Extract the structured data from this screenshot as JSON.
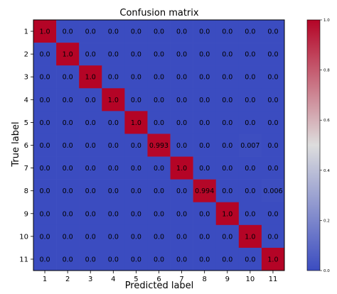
{
  "chart_data": {
    "type": "heatmap",
    "title": "Confusion matrix",
    "xlabel": "Predicted label",
    "ylabel": "True label",
    "x_tick_labels": [
      "1",
      "2",
      "3",
      "4",
      "5",
      "6",
      "7",
      "8",
      "9",
      "10",
      "11"
    ],
    "y_tick_labels": [
      "1",
      "2",
      "3",
      "4",
      "5",
      "6",
      "7",
      "8",
      "9",
      "10",
      "11"
    ],
    "values": [
      [
        1.0,
        0.0,
        0.0,
        0.0,
        0.0,
        0.0,
        0.0,
        0.0,
        0.0,
        0.0,
        0.0
      ],
      [
        0.0,
        1.0,
        0.0,
        0.0,
        0.0,
        0.0,
        0.0,
        0.0,
        0.0,
        0.0,
        0.0
      ],
      [
        0.0,
        0.0,
        1.0,
        0.0,
        0.0,
        0.0,
        0.0,
        0.0,
        0.0,
        0.0,
        0.0
      ],
      [
        0.0,
        0.0,
        0.0,
        1.0,
        0.0,
        0.0,
        0.0,
        0.0,
        0.0,
        0.0,
        0.0
      ],
      [
        0.0,
        0.0,
        0.0,
        0.0,
        1.0,
        0.0,
        0.0,
        0.0,
        0.0,
        0.0,
        0.0
      ],
      [
        0.0,
        0.0,
        0.0,
        0.0,
        0.0,
        0.993,
        0.0,
        0.0,
        0.0,
        0.007,
        0.0
      ],
      [
        0.0,
        0.0,
        0.0,
        0.0,
        0.0,
        0.0,
        1.0,
        0.0,
        0.0,
        0.0,
        0.0
      ],
      [
        0.0,
        0.0,
        0.0,
        0.0,
        0.0,
        0.0,
        0.0,
        0.994,
        0.0,
        0.0,
        0.006
      ],
      [
        0.0,
        0.0,
        0.0,
        0.0,
        0.0,
        0.0,
        0.0,
        0.0,
        1.0,
        0.0,
        0.0
      ],
      [
        0.0,
        0.0,
        0.0,
        0.0,
        0.0,
        0.0,
        0.0,
        0.0,
        0.0,
        1.0,
        0.0
      ],
      [
        0.0,
        0.0,
        0.0,
        0.0,
        0.0,
        0.0,
        0.0,
        0.0,
        0.0,
        0.0,
        1.0
      ]
    ],
    "cell_labels": [
      [
        "1.0",
        "0.0",
        "0.0",
        "0.0",
        "0.0",
        "0.0",
        "0.0",
        "0.0",
        "0.0",
        "0.0",
        "0.0"
      ],
      [
        "0.0",
        "1.0",
        "0.0",
        "0.0",
        "0.0",
        "0.0",
        "0.0",
        "0.0",
        "0.0",
        "0.0",
        "0.0"
      ],
      [
        "0.0",
        "0.0",
        "1.0",
        "0.0",
        "0.0",
        "0.0",
        "0.0",
        "0.0",
        "0.0",
        "0.0",
        "0.0"
      ],
      [
        "0.0",
        "0.0",
        "0.0",
        "1.0",
        "0.0",
        "0.0",
        "0.0",
        "0.0",
        "0.0",
        "0.0",
        "0.0"
      ],
      [
        "0.0",
        "0.0",
        "0.0",
        "0.0",
        "1.0",
        "0.0",
        "0.0",
        "0.0",
        "0.0",
        "0.0",
        "0.0"
      ],
      [
        "0.0",
        "0.0",
        "0.0",
        "0.0",
        "0.0",
        "0.993",
        "0.0",
        "0.0",
        "0.0",
        "0.007",
        "0.0"
      ],
      [
        "0.0",
        "0.0",
        "0.0",
        "0.0",
        "0.0",
        "0.0",
        "1.0",
        "0.0",
        "0.0",
        "0.0",
        "0.0"
      ],
      [
        "0.0",
        "0.0",
        "0.0",
        "0.0",
        "0.0",
        "0.0",
        "0.0",
        "0.994",
        "0.0",
        "0.0",
        "0.006"
      ],
      [
        "0.0",
        "0.0",
        "0.0",
        "0.0",
        "0.0",
        "0.0",
        "0.0",
        "0.0",
        "1.0",
        "0.0",
        "0.0"
      ],
      [
        "0.0",
        "0.0",
        "0.0",
        "0.0",
        "0.0",
        "0.0",
        "0.0",
        "0.0",
        "0.0",
        "1.0",
        "0.0"
      ],
      [
        "0.0",
        "0.0",
        "0.0",
        "0.0",
        "0.0",
        "0.0",
        "0.0",
        "0.0",
        "0.0",
        "0.0",
        "1.0"
      ]
    ],
    "colorbar": {
      "range": [
        0.0,
        1.0
      ],
      "ticks": [
        "0.0",
        "0.2",
        "0.4",
        "0.6",
        "0.8",
        "1.0"
      ],
      "colormap": "coolwarm",
      "low_color": "#3b4cc0",
      "mid_color": "#dddddd",
      "high_color": "#b40426"
    },
    "grid": false
  }
}
